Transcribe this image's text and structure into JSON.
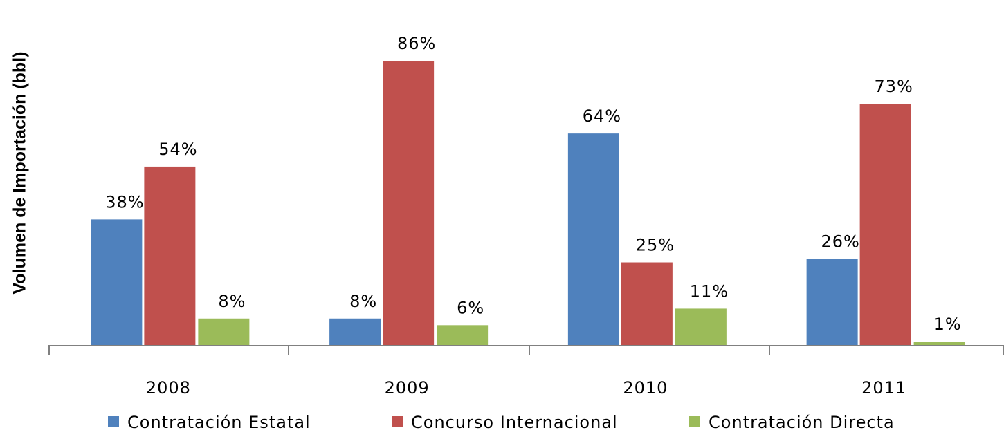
{
  "chart_data": {
    "type": "bar",
    "y_label": "Volumen de Importación (bbl)",
    "categories": [
      "2008",
      "2009",
      "2010",
      "2011"
    ],
    "series": [
      {
        "name": "Contratación Estatal",
        "color": "#4f81bd",
        "values": [
          38,
          8,
          64,
          26
        ],
        "value_labels": [
          "38%",
          "8%",
          "64%",
          "26%"
        ]
      },
      {
        "name": "Concurso Internacional",
        "color": "#c0504d",
        "values": [
          54,
          86,
          25,
          73
        ],
        "value_labels": [
          "54%",
          "86%",
          "25%",
          "73%"
        ]
      },
      {
        "name": "Contratación Directa",
        "color": "#9bbb59",
        "values": [
          8,
          6,
          11,
          1
        ],
        "value_labels": [
          "8%",
          "6%",
          "11%",
          "1%"
        ]
      }
    ]
  }
}
